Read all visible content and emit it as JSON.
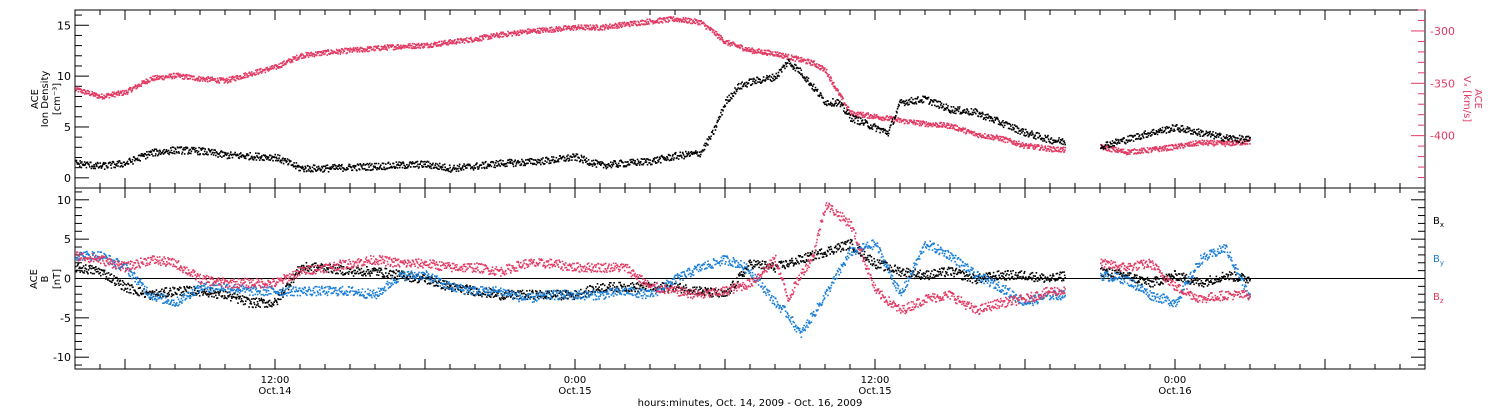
{
  "colors": {
    "black": "#000000",
    "blue": "#1a7fd8",
    "red": "#e23a63"
  },
  "xaxis": {
    "tick_labels": [
      {
        "time": "12:00",
        "date": "Oct.14",
        "hour": 18
      },
      {
        "time": "0:00",
        "date": "Oct.15",
        "hour": 30
      },
      {
        "time": "12:00",
        "date": "Oct.15",
        "hour": 42
      },
      {
        "time": "0:00",
        "date": "Oct.16",
        "hour": 54
      }
    ],
    "caption": "hours:minutes, Oct. 14, 2009 - Oct. 16, 2009"
  },
  "chart_data": [
    {
      "type": "scatter",
      "panel": "top",
      "x_unit": "hours since 2009-10-14 00:00",
      "xlim": [
        10,
        64
      ],
      "ylabel_left": [
        "ACE",
        "Ion Density",
        "[cm⁻³]"
      ],
      "ylabel_right": [
        "ACE",
        "Vₓ [km/s]"
      ],
      "ylim_left": [
        -1,
        16.5
      ],
      "ylim_right": [
        -450,
        -280
      ],
      "yticks_left": [
        "0",
        "5",
        "10",
        "15"
      ],
      "yticks_right": [
        "-300",
        "-350",
        "-400"
      ],
      "series": [
        {
          "name": "Ion Density",
          "color": "black",
          "axis": "left",
          "x": [
            10,
            11,
            12,
            13,
            14,
            15,
            16,
            17,
            18,
            19,
            20,
            21,
            22,
            23,
            24,
            25,
            26,
            27,
            28,
            29,
            30,
            31,
            32,
            33,
            34,
            35,
            35.5,
            36,
            36.5,
            37,
            38,
            38.5,
            39,
            39.5,
            40,
            40.5,
            41,
            42,
            42.5,
            43,
            44,
            45,
            46,
            47,
            48,
            49,
            49.6,
            50.5,
            51,
            52,
            53,
            54,
            55,
            56,
            57
          ],
          "y": [
            1.5,
            1.2,
            1.5,
            2.5,
            2.8,
            2.7,
            2.3,
            2.2,
            2.1,
            1.0,
            1.0,
            1.1,
            1.2,
            1.3,
            1.4,
            1.0,
            1.2,
            1.5,
            1.6,
            1.8,
            2.1,
            1.3,
            1.5,
            1.7,
            2.2,
            2.5,
            4.5,
            7.5,
            9.0,
            9.5,
            10.0,
            11.5,
            10.5,
            9.0,
            7.5,
            7.5,
            6.0,
            5.0,
            4.5,
            7.5,
            7.8,
            6.8,
            6.5,
            5.5,
            4.5,
            3.8,
            3.6,
            null,
            3.2,
            3.8,
            4.5,
            5.0,
            4.5,
            4.0,
            3.8
          ]
        },
        {
          "name": "Vx",
          "color": "red",
          "axis": "right",
          "x": [
            10,
            11,
            12,
            13,
            14,
            15,
            16,
            17,
            18,
            19,
            20,
            21,
            22,
            23,
            24,
            25,
            26,
            27,
            28,
            29,
            30,
            31,
            32,
            33,
            34,
            35,
            35.5,
            36,
            36.5,
            37,
            38,
            39,
            39.5,
            40,
            40.5,
            41,
            42,
            43,
            44,
            45,
            46,
            47,
            48,
            49,
            49.6,
            50.5,
            51,
            52,
            53,
            54,
            55,
            56,
            57
          ],
          "y": [
            -355,
            -362,
            -358,
            -345,
            -342,
            -345,
            -347,
            -340,
            -334,
            -323,
            -320,
            -318,
            -316,
            -314,
            -313,
            -310,
            -307,
            -303,
            -300,
            -298,
            -296,
            -296,
            -293,
            -290,
            -288,
            -291,
            -300,
            -310,
            -314,
            -318,
            -321,
            -327,
            -330,
            -337,
            -358,
            -378,
            -381,
            -385,
            -388,
            -390,
            -398,
            -402,
            -409,
            -412,
            -413,
            null,
            -410,
            -415,
            -413,
            -410,
            -406,
            -407,
            -405
          ]
        }
      ]
    },
    {
      "type": "scatter",
      "panel": "bottom",
      "x_unit": "hours since 2009-10-14 00:00",
      "xlim": [
        10,
        64
      ],
      "ylabel": [
        "ACE",
        "B",
        "[nT]"
      ],
      "ylim": [
        -11.5,
        11.5
      ],
      "yticks": [
        "10",
        "5",
        "0",
        "-5",
        "-10"
      ],
      "zero_line": true,
      "series": [
        {
          "name": "Bx",
          "color": "black",
          "x": [
            10,
            11,
            12,
            13,
            14,
            15,
            16,
            17,
            18,
            19,
            20,
            21,
            22,
            23,
            24,
            25,
            26,
            27,
            28,
            29,
            30,
            31,
            32,
            33,
            34,
            35,
            36,
            37,
            38,
            39,
            40,
            41,
            42,
            43,
            44,
            45,
            46,
            47,
            48,
            49,
            49.6,
            50.5,
            51,
            52,
            53,
            54,
            55,
            56,
            57
          ],
          "y": [
            1.5,
            1.0,
            -1.0,
            -2.0,
            -1.5,
            -1.5,
            -2.0,
            -3.0,
            -3.0,
            1.5,
            1.5,
            1.0,
            1.0,
            0.5,
            0.0,
            -1.0,
            -1.5,
            -2.0,
            -2.0,
            -2.0,
            -2.0,
            -1.0,
            -1.0,
            -1.0,
            -1.0,
            -1.5,
            -2.0,
            2.0,
            1.5,
            2.5,
            3.5,
            4.5,
            2.0,
            1.0,
            0.5,
            1.0,
            0.0,
            0.5,
            0.5,
            0.0,
            0.5,
            null,
            1.0,
            0.5,
            -0.5,
            0.5,
            -0.5,
            0.5,
            0.0
          ]
        },
        {
          "name": "By",
          "color": "blue",
          "x": [
            10,
            11,
            12,
            13,
            14,
            15,
            16,
            17,
            18,
            19,
            20,
            21,
            22,
            23,
            24,
            25,
            26,
            27,
            28,
            29,
            30,
            31,
            32,
            33,
            34,
            35,
            36,
            36.5,
            37,
            38,
            38.5,
            39,
            40,
            41,
            42,
            43,
            44,
            45,
            46,
            47,
            48,
            49,
            49.6,
            50.5,
            51,
            52,
            53,
            54,
            55,
            56,
            57
          ],
          "y": [
            3.0,
            3.0,
            1.5,
            -2.0,
            -3.0,
            -1.0,
            -1.0,
            -1.5,
            -1.5,
            -1.5,
            -1.5,
            -1.5,
            -2.0,
            0.5,
            0.5,
            -1.0,
            -1.5,
            -1.5,
            -2.5,
            -2.0,
            -2.0,
            -2.0,
            -1.5,
            -2.0,
            0.0,
            1.5,
            2.5,
            2.0,
            1.0,
            -3.0,
            -4.5,
            -7.0,
            -2.0,
            3.5,
            4.5,
            -2.0,
            4.5,
            3.0,
            0.5,
            -1.0,
            -3.0,
            -2.0,
            -2.0,
            null,
            0.5,
            0.0,
            -2.0,
            -3.0,
            2.5,
            4.0,
            -2.5
          ]
        },
        {
          "name": "Bz",
          "color": "red",
          "x": [
            10,
            11,
            12,
            13,
            14,
            15,
            16,
            17,
            18,
            19,
            20,
            21,
            22,
            23,
            24,
            25,
            26,
            27,
            28,
            29,
            30,
            31,
            32,
            33,
            34,
            35,
            36,
            37,
            38,
            38.5,
            39,
            39.5,
            40,
            41,
            42,
            43,
            44,
            45,
            46,
            47,
            48,
            49,
            49.6,
            50.5,
            51,
            52,
            53,
            54,
            55,
            56,
            57
          ],
          "y": [
            3.0,
            2.5,
            1.5,
            2.5,
            2.0,
            0.0,
            -0.5,
            -0.5,
            -0.5,
            1.0,
            1.5,
            2.0,
            2.5,
            2.0,
            2.0,
            1.5,
            1.5,
            1.0,
            2.0,
            2.0,
            1.5,
            1.5,
            1.5,
            -1.0,
            -1.5,
            -2.0,
            -1.5,
            -0.5,
            2.5,
            -2.5,
            0.5,
            3.0,
            9.5,
            7.0,
            -1.5,
            -4.0,
            -2.5,
            -2.0,
            -4.0,
            -3.0,
            -2.5,
            -1.5,
            -1.5,
            null,
            2.0,
            1.5,
            2.0,
            -1.0,
            -2.5,
            -2.0,
            -2.0
          ]
        }
      ],
      "legend": {
        "position": "right",
        "entries": [
          {
            "label": "B",
            "sub": "x",
            "color": "black"
          },
          {
            "label": "B",
            "sub": "y",
            "color": "blue"
          },
          {
            "label": "B",
            "sub": "z",
            "color": "red"
          }
        ]
      }
    }
  ]
}
